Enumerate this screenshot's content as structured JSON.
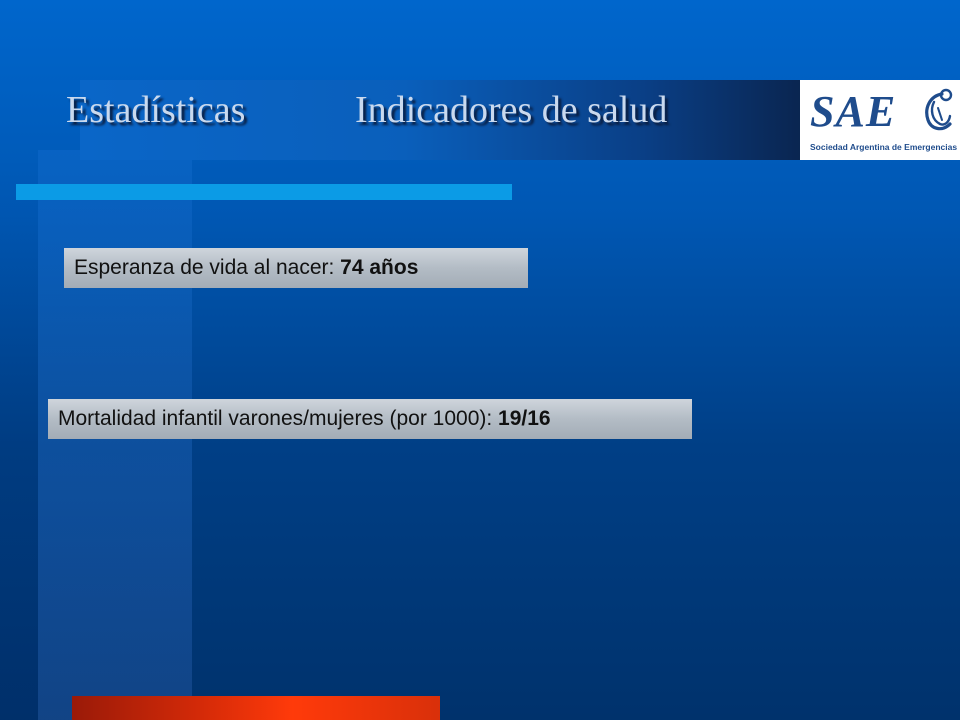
{
  "title": {
    "left": "Estadísticas",
    "right": "Indicadores de salud"
  },
  "logo": {
    "name": "SAE",
    "subtitle": "Sociedad Argentina de Emergencias",
    "icon": "emblem-icon"
  },
  "stats": [
    {
      "label": "Esperanza de vida al nacer: ",
      "value": "74 años"
    },
    {
      "label": "Mortalidad infantil varones/mujeres (por 1000): ",
      "value": "19/16"
    }
  ],
  "colors": {
    "background": "#0057b3",
    "accent_line": "#0b9be6",
    "bottom_bar": "#ff3a0a",
    "logo_text": "#1f4c8c"
  }
}
